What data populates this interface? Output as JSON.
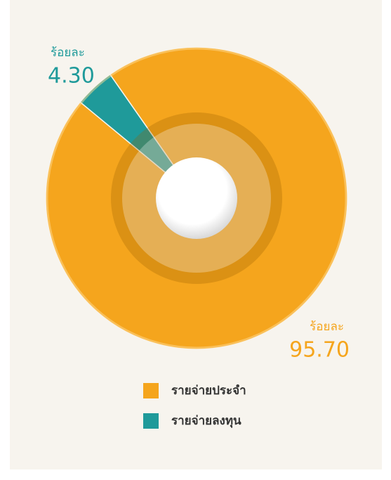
{
  "chart_data": {
    "type": "pie",
    "categories": [
      "รายจ่ายประจำ",
      "รายจ่ายลงทุน"
    ],
    "values": [
      95.7,
      4.3
    ],
    "value_labels": [
      "95.70",
      "4.30"
    ],
    "value_captions": [
      "ร้อยละ",
      "ร้อยละ"
    ],
    "colors": [
      "#f5a51d",
      "#1f9a9a"
    ]
  }
}
